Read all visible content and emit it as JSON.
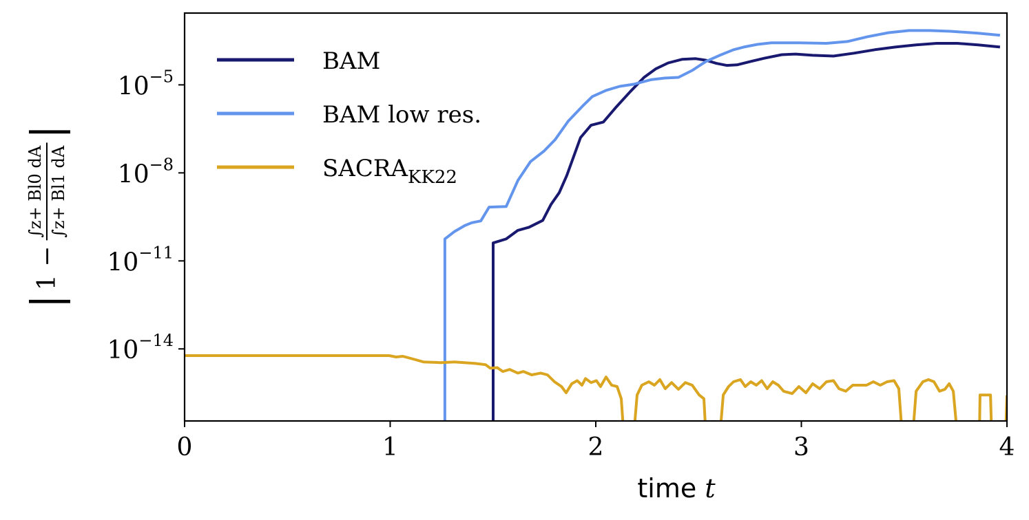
{
  "chart_data": {
    "type": "line",
    "xlabel_text": "time",
    "xlabel_var": "t",
    "ylabel": {
      "prefix": "1 −",
      "numerator": "∫z+ Bl0 dA",
      "denominator": "∫z+ Bl1 dA"
    },
    "xlim": [
      0,
      4
    ],
    "ylim": [
      3.5e-17,
      0.0028
    ],
    "yscale": "log",
    "grid": false,
    "legend_placement": "top-left",
    "xticks": [
      {
        "v": 0,
        "label": "0"
      },
      {
        "v": 1,
        "label": "1"
      },
      {
        "v": 2,
        "label": "2"
      },
      {
        "v": 3,
        "label": "3"
      },
      {
        "v": 4,
        "label": "4"
      }
    ],
    "yticks": [
      {
        "v": 1e-05,
        "base": "10",
        "exp": "−5"
      },
      {
        "v": 1e-08,
        "base": "10",
        "exp": "−8"
      },
      {
        "v": 1e-11,
        "base": "10",
        "exp": "−11"
      },
      {
        "v": 1e-14,
        "base": "10",
        "exp": "−14"
      }
    ],
    "series": [
      {
        "name": "BAM",
        "name_sub": "",
        "color": "#191970",
        "points": [
          [
            1.501,
            1e-17
          ],
          [
            1.501,
            4.1e-11
          ],
          [
            1.564,
            5.6e-11
          ],
          [
            1.621,
            1.1e-10
          ],
          [
            1.675,
            1.4e-10
          ],
          [
            1.742,
            2.4e-10
          ],
          [
            1.782,
            8.3e-10
          ],
          [
            1.822,
            2.1e-09
          ],
          [
            1.859,
            8.1e-09
          ],
          [
            1.926,
            1.6e-07
          ],
          [
            1.977,
            4.2e-07
          ],
          [
            2.037,
            5.4e-07
          ],
          [
            2.101,
            1.8e-06
          ],
          [
            2.168,
            5.9e-06
          ],
          [
            2.235,
            1.8e-05
          ],
          [
            2.291,
            3.5e-05
          ],
          [
            2.352,
            5.6e-05
          ],
          [
            2.419,
            7.4e-05
          ],
          [
            2.486,
            7.8e-05
          ],
          [
            2.536,
            6.9e-05
          ],
          [
            2.586,
            5.4e-05
          ],
          [
            2.637,
            4.6e-05
          ],
          [
            2.687,
            4.8e-05
          ],
          [
            2.754,
            6.3e-05
          ],
          [
            2.821,
            8.1e-05
          ],
          [
            2.905,
            0.000107
          ],
          [
            2.972,
            0.000112
          ],
          [
            3.055,
            0.000102
          ],
          [
            3.156,
            9.6e-05
          ],
          [
            3.256,
            0.00012
          ],
          [
            3.357,
            0.000158
          ],
          [
            3.457,
            0.000195
          ],
          [
            3.558,
            0.00023
          ],
          [
            3.658,
            0.00026
          ],
          [
            3.759,
            0.00026
          ],
          [
            3.859,
            0.00023
          ],
          [
            3.966,
            0.000195
          ]
        ]
      },
      {
        "name": "BAM low res.",
        "name_sub": "",
        "color": "#6495ED",
        "points": [
          [
            1.266,
            1e-17
          ],
          [
            1.266,
            5.6e-11
          ],
          [
            1.313,
            1e-10
          ],
          [
            1.363,
            1.6e-10
          ],
          [
            1.397,
            2e-10
          ],
          [
            1.441,
            2.3e-10
          ],
          [
            1.481,
            6.8e-10
          ],
          [
            1.564,
            7.1e-10
          ],
          [
            1.621,
            5.5e-09
          ],
          [
            1.682,
            2.4e-08
          ],
          [
            1.749,
            5.6e-08
          ],
          [
            1.802,
            1.35e-07
          ],
          [
            1.866,
            5.8e-07
          ],
          [
            1.933,
            1.8e-06
          ],
          [
            1.983,
            4e-06
          ],
          [
            2.05,
            6.5e-06
          ],
          [
            2.117,
            8.9e-06
          ],
          [
            2.184,
            1.05e-05
          ],
          [
            2.268,
            1.5e-05
          ],
          [
            2.335,
            1.7e-05
          ],
          [
            2.402,
            1.8e-05
          ],
          [
            2.469,
            3.1e-05
          ],
          [
            2.536,
            6.3e-05
          ],
          [
            2.603,
            0.000102
          ],
          [
            2.67,
            0.000158
          ],
          [
            2.72,
            0.000195
          ],
          [
            2.787,
            0.00024
          ],
          [
            2.854,
            0.00027
          ],
          [
            2.988,
            0.00027
          ],
          [
            3.122,
            0.00026
          ],
          [
            3.223,
            0.0003
          ],
          [
            3.323,
            0.00044
          ],
          [
            3.424,
            0.0006
          ],
          [
            3.524,
            0.00071
          ],
          [
            3.625,
            0.00071
          ],
          [
            3.725,
            0.00067
          ],
          [
            3.859,
            0.00058
          ],
          [
            3.966,
            0.00049
          ]
        ]
      },
      {
        "name": "SACRA",
        "name_sub": "KK22",
        "color": "#DAA520",
        "points": [
          [
            0,
            5.9e-15
          ],
          [
            0.995,
            5.9e-15
          ],
          [
            1.028,
            5.3e-15
          ],
          [
            1.062,
            5.6e-15
          ],
          [
            1.112,
            4.5e-15
          ],
          [
            1.162,
            3.6e-15
          ],
          [
            1.246,
            3.4e-15
          ],
          [
            1.313,
            3.6e-15
          ],
          [
            1.414,
            3.2e-15
          ],
          [
            1.464,
            2.9e-15
          ],
          [
            1.487,
            2.2e-15
          ],
          [
            1.521,
            2.3e-15
          ],
          [
            1.548,
            1.7e-15
          ],
          [
            1.581,
            2e-15
          ],
          [
            1.621,
            1.5e-15
          ],
          [
            1.648,
            1.7e-15
          ],
          [
            1.688,
            1.3e-15
          ],
          [
            1.732,
            1.5e-15
          ],
          [
            1.765,
            1.3e-15
          ],
          [
            1.799,
            7.6e-16
          ],
          [
            1.833,
            5.2e-16
          ],
          [
            1.856,
            3.2e-16
          ],
          [
            1.883,
            6.5e-16
          ],
          [
            1.91,
            8.3e-16
          ],
          [
            1.933,
            5.8e-16
          ],
          [
            1.95,
            9.8e-16
          ],
          [
            1.977,
            7.1e-16
          ],
          [
            2.003,
            8.3e-16
          ],
          [
            2.023,
            5.2e-16
          ],
          [
            2.05,
            1.1e-15
          ],
          [
            2.077,
            5.8e-16
          ],
          [
            2.104,
            5.2e-16
          ],
          [
            2.124,
            2e-16
          ],
          [
            2.137,
            1e-17
          ],
          [
            2.184,
            1e-17
          ],
          [
            2.201,
            2.7e-16
          ],
          [
            2.224,
            5.8e-16
          ],
          [
            2.258,
            7.6e-16
          ],
          [
            2.285,
            5.8e-16
          ],
          [
            2.312,
            9e-16
          ],
          [
            2.338,
            4.4e-16
          ],
          [
            2.369,
            7.1e-16
          ],
          [
            2.402,
            4.2e-16
          ],
          [
            2.436,
            7.1e-16
          ],
          [
            2.469,
            5.8e-16
          ],
          [
            2.503,
            2.7e-16
          ],
          [
            2.526,
            2e-16
          ],
          [
            2.536,
            1e-17
          ],
          [
            2.603,
            1e-17
          ],
          [
            2.62,
            2.7e-16
          ],
          [
            2.646,
            5.2e-16
          ],
          [
            2.67,
            7.6e-16
          ],
          [
            2.704,
            9e-16
          ],
          [
            2.727,
            5.2e-16
          ],
          [
            2.754,
            7.6e-16
          ],
          [
            2.781,
            5.8e-16
          ],
          [
            2.807,
            8.3e-16
          ],
          [
            2.834,
            4.4e-16
          ],
          [
            2.861,
            7.6e-16
          ],
          [
            2.888,
            5.8e-16
          ],
          [
            2.914,
            3.6e-16
          ],
          [
            2.955,
            3e-16
          ],
          [
            2.988,
            5.2e-16
          ],
          [
            3.022,
            3.2e-16
          ],
          [
            3.055,
            6.5e-16
          ],
          [
            3.089,
            4.4e-16
          ],
          [
            3.122,
            7.6e-16
          ],
          [
            3.156,
            8.3e-16
          ],
          [
            3.183,
            4.4e-16
          ],
          [
            3.216,
            3.6e-16
          ],
          [
            3.25,
            5.8e-16
          ],
          [
            3.317,
            5.8e-16
          ],
          [
            3.35,
            7.6e-16
          ],
          [
            3.384,
            5.8e-16
          ],
          [
            3.417,
            7.6e-16
          ],
          [
            3.451,
            8.3e-16
          ],
          [
            3.474,
            4.4e-16
          ],
          [
            3.491,
            1e-17
          ],
          [
            3.541,
            1e-17
          ],
          [
            3.558,
            3.6e-16
          ],
          [
            3.591,
            7.6e-16
          ],
          [
            3.618,
            9e-16
          ],
          [
            3.645,
            7.6e-16
          ],
          [
            3.672,
            3.6e-16
          ],
          [
            3.698,
            4.2e-16
          ],
          [
            3.719,
            6.5e-16
          ],
          [
            3.739,
            3.6e-16
          ],
          [
            3.759,
            1e-17
          ],
          [
            3.866,
            1e-17
          ],
          [
            3.869,
            2.7e-16
          ],
          [
            3.92,
            2.7e-16
          ],
          [
            3.926,
            1e-17
          ],
          [
            3.993,
            1e-17
          ],
          [
            4.0,
            2.6e-16
          ]
        ]
      }
    ]
  }
}
